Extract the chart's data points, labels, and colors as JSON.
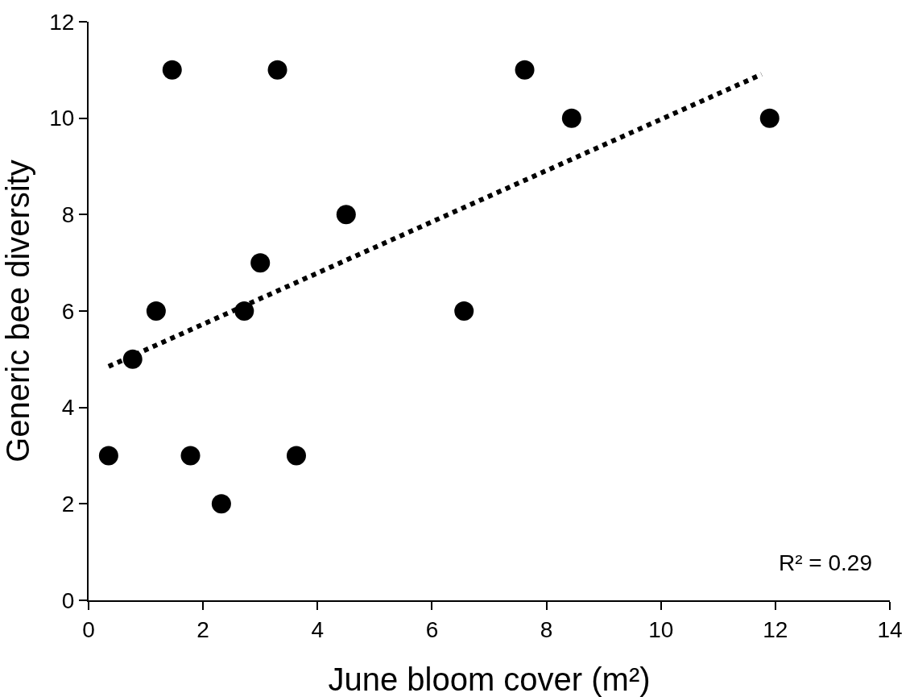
{
  "chart_data": {
    "type": "scatter",
    "xlabel": "June bloom cover (m²)",
    "ylabel": "Generic bee diversity",
    "annotations": [
      "R² = 0.29"
    ],
    "x": [
      0.35,
      0.77,
      1.18,
      1.46,
      1.78,
      2.32,
      2.72,
      3.0,
      3.3,
      3.63,
      4.5,
      6.56,
      7.62,
      8.44,
      11.9
    ],
    "series": [
      {
        "type": "scatter",
        "color": "#000000",
        "marker": "circle",
        "values": [
          3,
          5,
          6,
          11,
          3,
          2,
          6,
          7,
          11,
          3,
          8,
          6,
          11,
          10,
          10
        ]
      },
      {
        "type": "line",
        "color": "#000000",
        "line_style": "dotted",
        "x": [
          0.35,
          11.76
        ],
        "values": [
          4.85,
          10.91
        ]
      }
    ],
    "xlim": [
      0,
      14
    ],
    "xticks": [
      0,
      2,
      4,
      6,
      8,
      10,
      12,
      14
    ],
    "ylim": [
      0,
      12
    ],
    "yticks": [
      0,
      2,
      4,
      6,
      8,
      10,
      12
    ],
    "grid": false
  }
}
